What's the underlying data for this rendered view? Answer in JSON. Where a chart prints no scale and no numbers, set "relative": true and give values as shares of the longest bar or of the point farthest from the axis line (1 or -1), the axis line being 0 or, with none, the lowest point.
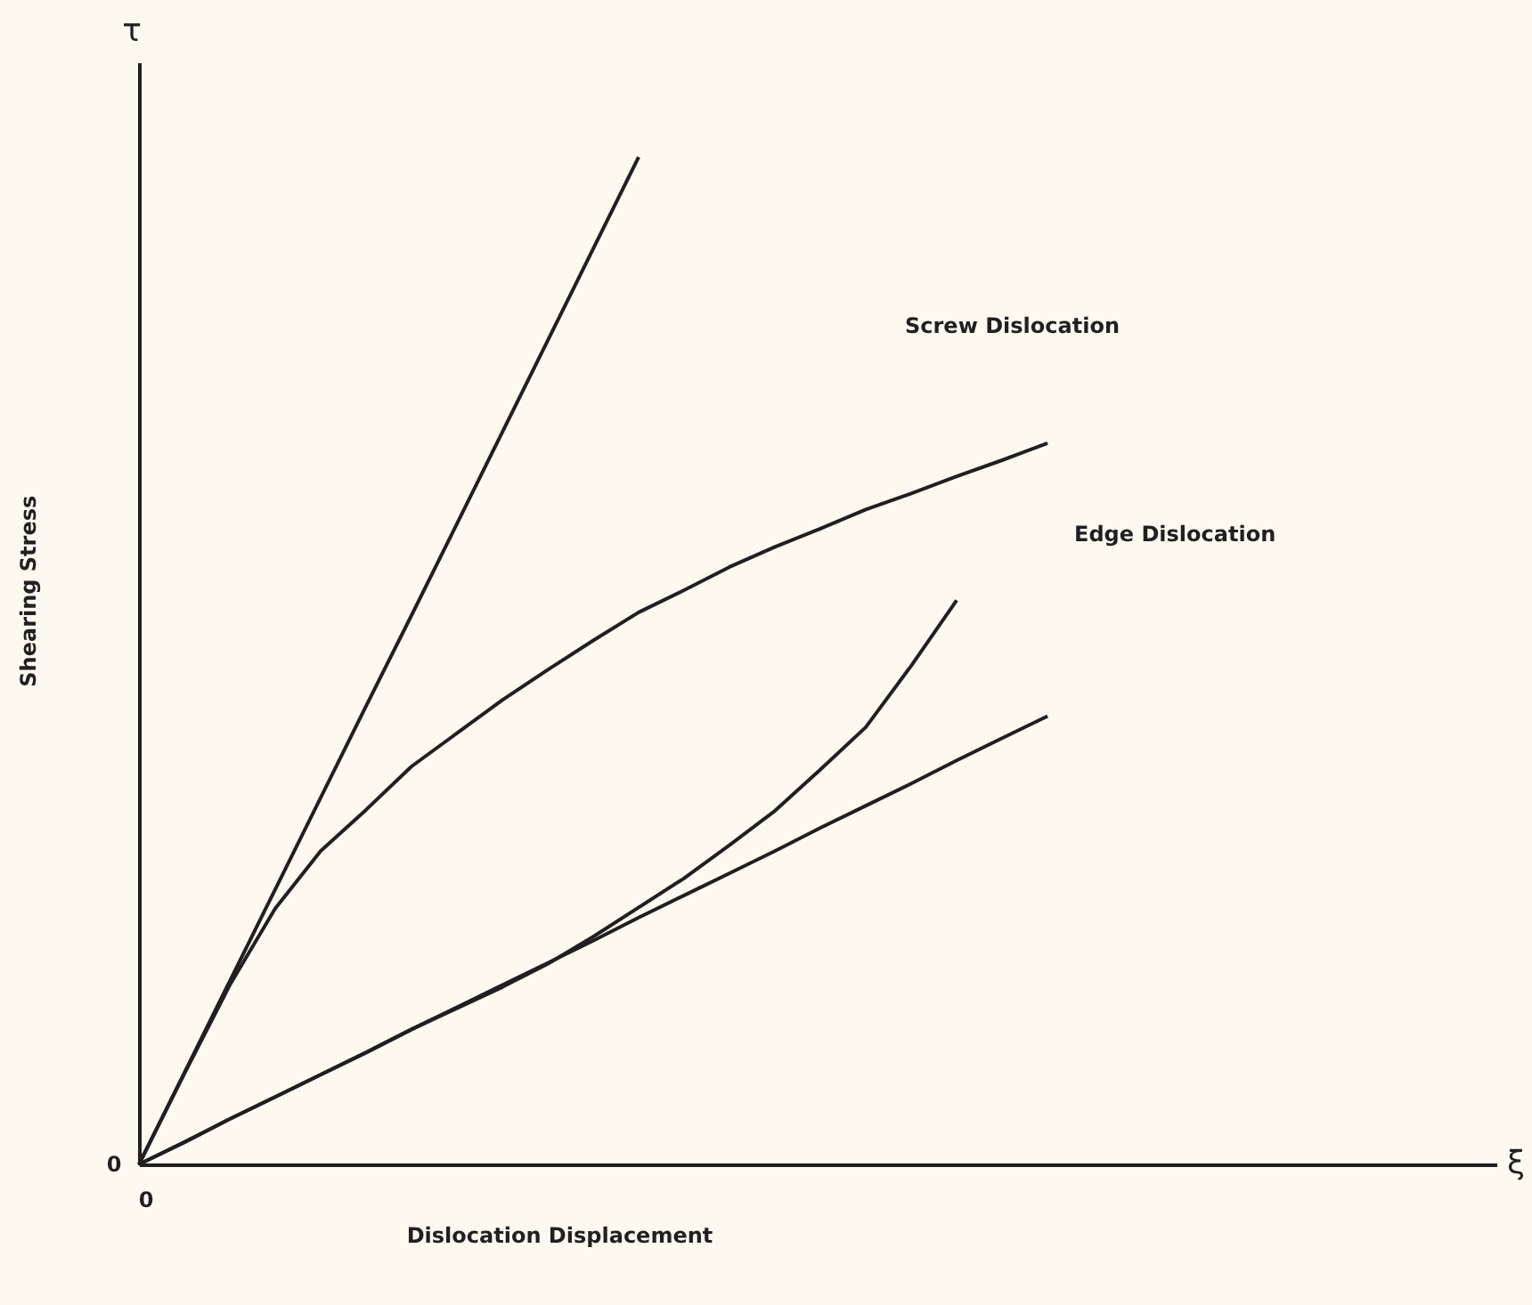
{
  "chart_data": {
    "type": "line",
    "relative": true,
    "xlabel": "Dislocation Displacement",
    "ylabel": "Shearing Stress",
    "categories": [
      null,
      null,
      null,
      null,
      null,
      null,
      null,
      null,
      null,
      null,
      null,
      null,
      null,
      null,
      null,
      null,
      null,
      null,
      null,
      null,
      null
    ],
    "series": [
      {
        "color": "#231f20",
        "values": [
          0,
          0.091,
          0.182,
          0.273,
          0.364,
          0.455,
          0.545,
          0.636,
          0.727,
          0.818,
          0.909,
          1.0,
          null,
          null,
          null,
          null,
          null,
          null,
          null,
          null,
          null
        ]
      },
      {
        "color": "#231f20",
        "values": [
          0,
          0.022,
          0.045,
          0.067,
          0.089,
          0.111,
          0.134,
          0.156,
          0.178,
          0.2,
          0.222,
          0.245,
          0.267,
          0.289,
          0.311,
          0.334,
          0.356,
          0.378,
          0.401,
          0.423,
          0.445
        ]
      },
      {
        "color": "#231f20",
        "values": [
          0,
          0.09,
          0.178,
          0.254,
          0.311,
          0.352,
          0.395,
          0.428,
          0.461,
          0.491,
          0.52,
          0.548,
          0.57,
          0.593,
          0.613,
          0.631,
          0.65,
          0.666,
          0.683,
          0.699,
          0.716
        ]
      },
      {
        "color": "#231f20",
        "values": [
          0,
          0.022,
          0.045,
          0.067,
          0.089,
          0.111,
          0.134,
          0.155,
          0.176,
          0.199,
          0.226,
          0.255,
          0.284,
          0.317,
          0.351,
          0.392,
          0.434,
          0.495,
          0.56,
          null,
          null
        ]
      }
    ],
    "annotations": [
      "Screw Dislocation",
      "Edge Dislocation",
      "τ",
      "ξ",
      "0",
      "0"
    ],
    "grid": false,
    "marker": "none",
    "line_style": "solid"
  }
}
